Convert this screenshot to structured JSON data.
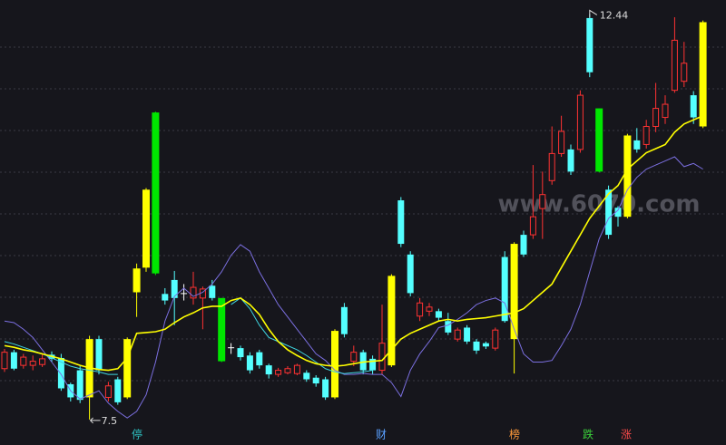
{
  "chart_data": {
    "type": "candlestick",
    "ylim": [
      7.19,
      12.61
    ],
    "hollow_up_color": "#ff3232",
    "candles": {
      "open": [
        8.12,
        8.32,
        8.16,
        8.16,
        8.17,
        8.29,
        8.25,
        7.93,
        8.1,
        7.77,
        8.48,
        7.77,
        7.99,
        7.77,
        9.05,
        9.35,
        9.28,
        9.03,
        9.2,
        9.04,
        8.98,
        8.98,
        9.13,
        8.98,
        8.38,
        8.37,
        8.28,
        8.32,
        8.16,
        8.05,
        8.07,
        8.06,
        8.07,
        8.01,
        7.99,
        7.77,
        8.87,
        8.21,
        8.32,
        8.24,
        8.1,
        8.16,
        10.17,
        9.51,
        8.76,
        8.82,
        8.82,
        8.7,
        8.48,
        8.62,
        8.45,
        8.43,
        8.37,
        9.48,
        8.48,
        9.75,
        9.75,
        10.07,
        10.41,
        10.74,
        10.79,
        10.79,
        12.39,
        11.29,
        10.3,
        10.08,
        9.97,
        10.9,
        10.85,
        11.07,
        11.18,
        11.51,
        11.62,
        11.45,
        11.07
      ],
      "high": [
        8.36,
        8.35,
        8.3,
        8.28,
        8.3,
        8.33,
        8.3,
        7.95,
        8.15,
        8.52,
        8.52,
        7.96,
        8.02,
        8.5,
        9.4,
        10.32,
        11.25,
        9.1,
        9.31,
        9.15,
        9.3,
        9.12,
        9.2,
        8.98,
        8.43,
        8.4,
        8.32,
        8.35,
        8.18,
        8.13,
        8.15,
        8.18,
        8.1,
        8.04,
        8.02,
        8.6,
        8.92,
        8.4,
        8.35,
        8.28,
        8.9,
        9.27,
        10.21,
        9.55,
        8.98,
        8.92,
        8.85,
        8.8,
        8.62,
        8.65,
        8.48,
        8.45,
        8.62,
        9.55,
        9.66,
        9.8,
        10.6,
        10.52,
        11.07,
        11.2,
        10.85,
        11.51,
        12.44,
        11.29,
        10.35,
        10.1,
        10.98,
        11.05,
        11.15,
        11.6,
        11.45,
        12.4,
        12.1,
        11.5,
        12.36
      ],
      "low": [
        8.08,
        8.1,
        8.12,
        8.1,
        8.14,
        8.2,
        7.85,
        7.72,
        7.7,
        7.5,
        8.05,
        7.72,
        7.68,
        7.75,
        8.75,
        9.3,
        9.26,
        8.9,
        8.65,
        8.95,
        8.9,
        8.6,
        8.95,
        8.2,
        8.3,
        8.22,
        8.06,
        8.12,
        8.0,
        8.02,
        8.05,
        8.04,
        7.96,
        7.9,
        7.74,
        7.75,
        8.5,
        8.15,
        8.05,
        8.05,
        8.05,
        8.14,
        9.6,
        9.0,
        8.7,
        8.76,
        8.7,
        8.53,
        8.45,
        8.42,
        8.3,
        8.36,
        8.34,
        8.68,
        8.06,
        9.48,
        9.7,
        9.7,
        10.36,
        10.7,
        10.48,
        10.75,
        11.67,
        10.51,
        9.7,
        9.85,
        9.95,
        10.75,
        10.8,
        11.0,
        11.1,
        11.48,
        11.55,
        11.1,
        11.05
      ],
      "close": [
        8.32,
        8.12,
        8.26,
        8.21,
        8.24,
        8.24,
        7.88,
        7.77,
        7.74,
        8.48,
        8.1,
        7.91,
        7.71,
        8.48,
        9.34,
        10.3,
        11.24,
        8.95,
        8.98,
        9.03,
        9.11,
        9.09,
        8.98,
        8.21,
        8.37,
        8.26,
        8.1,
        8.16,
        8.05,
        8.1,
        8.12,
        8.16,
        7.99,
        7.94,
        7.77,
        8.58,
        8.54,
        8.32,
        8.1,
        8.1,
        8.43,
        9.25,
        9.64,
        9.04,
        8.92,
        8.87,
        8.74,
        8.56,
        8.59,
        8.45,
        8.34,
        8.39,
        8.59,
        8.7,
        9.64,
        9.51,
        9.97,
        10.24,
        10.74,
        11.01,
        10.52,
        11.45,
        11.73,
        10.52,
        9.75,
        9.97,
        10.96,
        10.79,
        11.07,
        11.29,
        11.34,
        12.12,
        11.84,
        11.18,
        12.34
      ]
    },
    "colors": [
      "#ff3232",
      "#54ffff",
      "#ff3232",
      "#ff3232",
      "#ff3232",
      "#54ffff",
      "#54ffff",
      "#54ffff",
      "#54ffff",
      "#ffff00",
      "#54ffff",
      "#ff3232",
      "#54ffff",
      "#ffff00",
      "#ffff00",
      "#ffff00",
      "#00e600",
      "#54ffff",
      "#54ffff",
      "#ffffff",
      "#ff3232",
      "#ff3232",
      "#54ffff",
      "#00e600",
      "#ffffff",
      "#54ffff",
      "#54ffff",
      "#54ffff",
      "#54ffff",
      "#ff3232",
      "#ff3232",
      "#ff3232",
      "#54ffff",
      "#54ffff",
      "#54ffff",
      "#ffff00",
      "#54ffff",
      "#ff3232",
      "#54ffff",
      "#54ffff",
      "#ff3232",
      "#ffff00",
      "#54ffff",
      "#54ffff",
      "#ff3232",
      "#ff3232",
      "#54ffff",
      "#54ffff",
      "#ff3232",
      "#54ffff",
      "#54ffff",
      "#54ffff",
      "#ff3232",
      "#54ffff",
      "#ffff00",
      "#54ffff",
      "#ff3232",
      "#ff3232",
      "#ff3232",
      "#ff3232",
      "#54ffff",
      "#ff3232",
      "#54ffff",
      "#00e600",
      "#54ffff",
      "#54ffff",
      "#ffff00",
      "#54ffff",
      "#ff3232",
      "#ff3232",
      "#ff3232",
      "#ff3232",
      "#ff3232",
      "#54ffff",
      "#ffff00"
    ],
    "lines": [
      {
        "color": "#7b6fe0",
        "values": [
          8.7,
          8.68,
          8.6,
          8.5,
          8.35,
          8.2,
          8.05,
          7.85,
          7.75,
          7.8,
          7.85,
          7.7,
          7.6,
          7.52,
          7.6,
          7.8,
          8.2,
          8.7,
          9.0,
          9.1,
          9.0,
          9.05,
          9.15,
          9.3,
          9.5,
          9.63,
          9.55,
          9.3,
          9.1,
          8.9,
          8.75,
          8.6,
          8.45,
          8.3,
          8.22,
          8.1,
          8.05,
          8.05,
          8.06,
          8.05,
          8.05,
          7.95,
          7.78,
          8.1,
          8.3,
          8.45,
          8.62,
          8.65,
          8.72,
          8.8,
          8.9,
          8.95,
          8.98,
          8.92,
          8.6,
          8.3,
          8.2,
          8.2,
          8.22,
          8.4,
          8.6,
          8.9,
          9.3,
          9.7,
          9.95,
          10.05,
          10.3,
          10.45,
          10.55,
          10.6,
          10.65,
          10.7,
          10.58,
          10.62,
          10.55
        ]
      },
      {
        "color": "#3fd6e0",
        "values": [
          8.45,
          8.42,
          8.38,
          8.34,
          8.3,
          8.25,
          8.2,
          8.15,
          8.12,
          8.1,
          8.08,
          8.05,
          8.05,
          null,
          null,
          null,
          null,
          null,
          null,
          null,
          null,
          null,
          null,
          null,
          8.9,
          8.98,
          8.85,
          8.65,
          8.5,
          8.45,
          8.4,
          8.35,
          8.28,
          8.2,
          8.12,
          8.08,
          8.06,
          8.07,
          8.08,
          8.1,
          null,
          null,
          null,
          null,
          null,
          null,
          null,
          null,
          null,
          null,
          null,
          null,
          null,
          null,
          null,
          null,
          null,
          null,
          null,
          null,
          null,
          null,
          null,
          null,
          null,
          null,
          null,
          null,
          null,
          null,
          null,
          null,
          null,
          null,
          null
        ]
      },
      {
        "color": "#ffff00",
        "values": [
          8.4,
          8.38,
          8.35,
          8.33,
          8.3,
          8.27,
          8.24,
          8.2,
          8.16,
          8.13,
          8.11,
          8.1,
          8.12,
          8.25,
          8.55,
          8.56,
          8.57,
          8.6,
          8.68,
          8.75,
          8.8,
          8.86,
          8.88,
          8.88,
          8.95,
          8.98,
          8.9,
          8.78,
          8.6,
          8.45,
          8.35,
          8.28,
          8.22,
          8.18,
          8.16,
          8.15,
          8.16,
          8.18,
          8.2,
          8.21,
          8.22,
          8.35,
          8.48,
          8.55,
          8.6,
          8.65,
          8.7,
          8.72,
          8.7,
          8.72,
          8.73,
          8.74,
          8.76,
          8.78,
          8.8,
          8.85,
          8.95,
          9.05,
          9.15,
          9.35,
          9.55,
          9.75,
          9.95,
          10.1,
          10.25,
          10.35,
          10.55,
          10.65,
          10.75,
          10.8,
          10.85,
          11.0,
          11.1,
          11.15,
          11.2
        ]
      }
    ],
    "watermark": "www.6070.com",
    "markers": [
      "停",
      "财",
      "榜",
      "跌",
      "涨"
    ]
  }
}
